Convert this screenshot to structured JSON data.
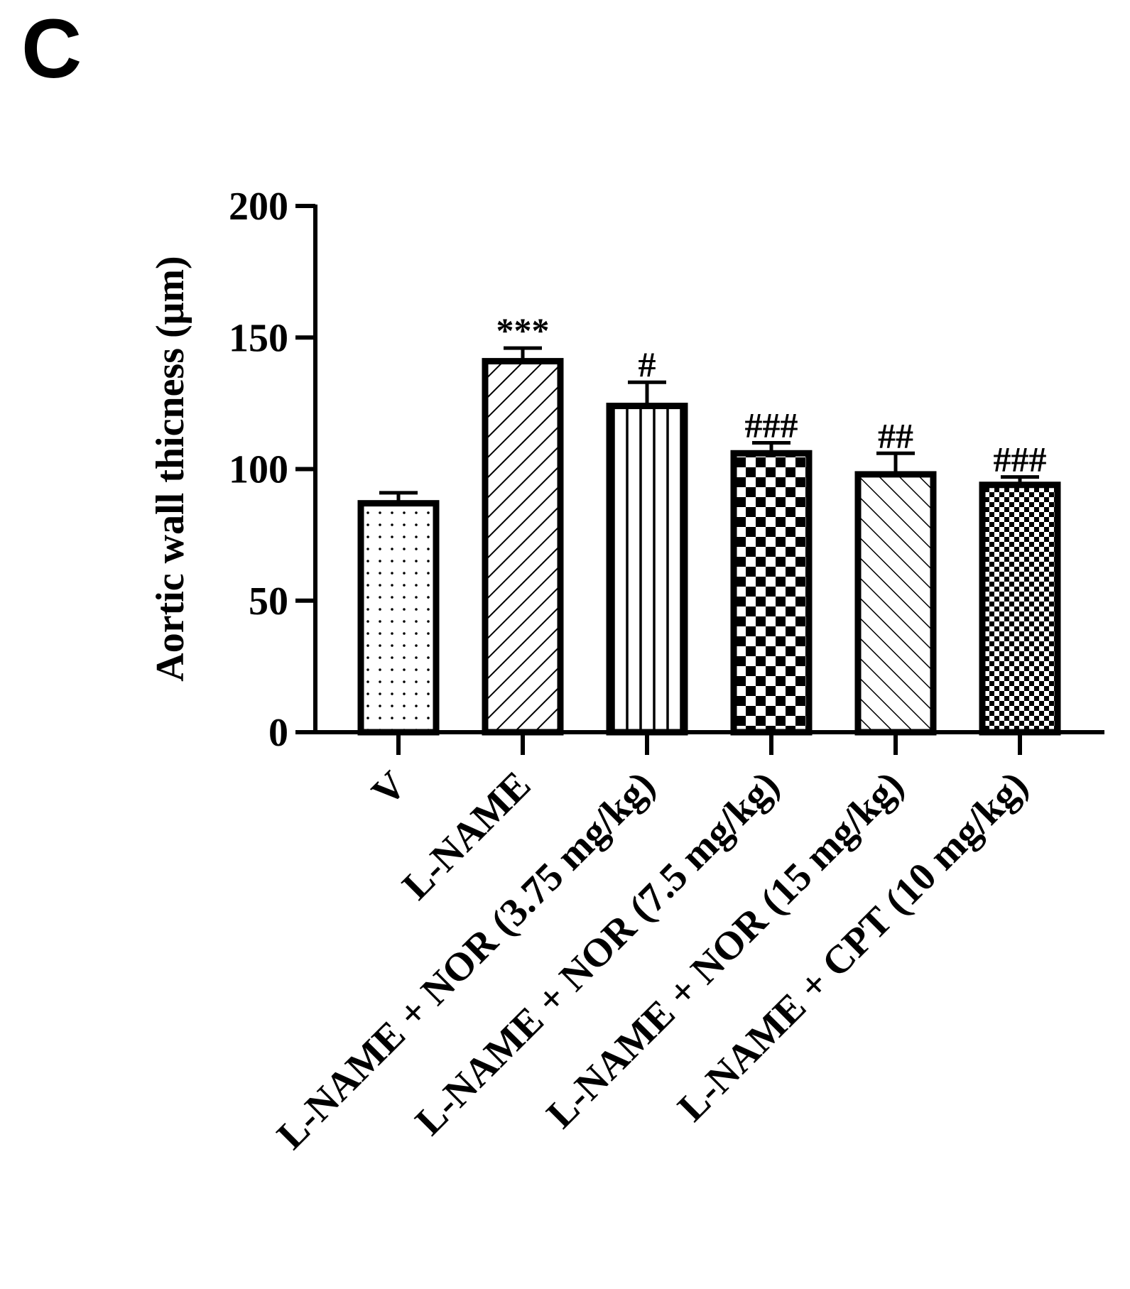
{
  "panel_label": "C",
  "chart_data": {
    "type": "bar",
    "ylabel": "Aortic wall thicness (μm)",
    "xlabel": "",
    "ylim": [
      0,
      200
    ],
    "yticks": [
      0,
      50,
      100,
      150,
      200
    ],
    "categories": [
      "V",
      "L-NAME",
      "L-NAME + NOR (3.75 mg/kg)",
      "L-NAME + NOR (7.5 mg/kg)",
      "L-NAME + NOR (15 mg/kg)",
      "L-NAME + CPT (10 mg/kg)"
    ],
    "values": [
      87,
      141,
      124,
      106,
      98,
      94
    ],
    "errors": [
      4,
      5,
      9,
      4,
      8,
      3
    ],
    "significance": [
      "",
      "***",
      "#",
      "###",
      "##",
      "###"
    ],
    "patterns": [
      "dots",
      "diag-fwd",
      "vertical",
      "checker-large",
      "diag-back",
      "checker-small"
    ],
    "colors": {
      "stroke": "#000000",
      "fill": "#ffffff"
    },
    "grid": false,
    "legend": "none"
  }
}
